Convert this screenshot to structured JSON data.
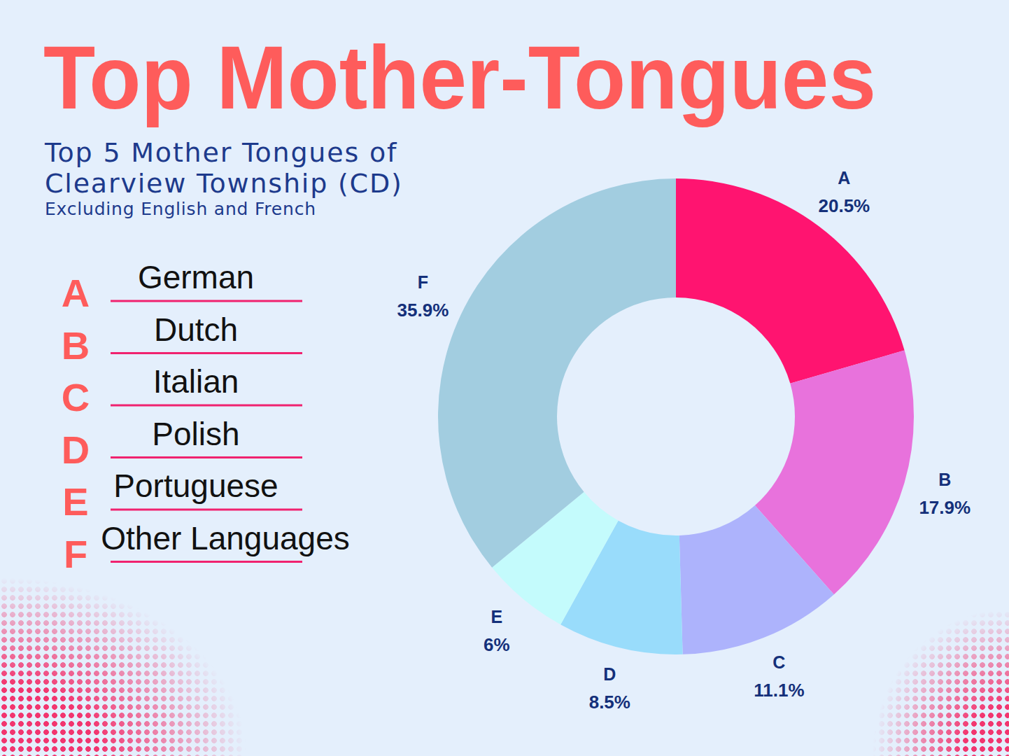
{
  "chart_data": {
    "type": "donut",
    "title": "Top Mother-Tongues",
    "subtitle": "Top 5 Mother Tongues of Clearview Township (CD)",
    "note": "Excluding English and French",
    "categories": [
      "A",
      "B",
      "C",
      "D",
      "E",
      "F"
    ],
    "category_names": [
      "German",
      "Dutch",
      "Italian",
      "Polish",
      "Portuguese",
      "Other Languages"
    ],
    "values": [
      20.5,
      17.9,
      11.1,
      8.5,
      6,
      35.9
    ],
    "value_labels": [
      "20.5%",
      "17.9%",
      "11.1%",
      "8.5%",
      "6%",
      "35.9%"
    ],
    "colors": [
      "#ff1470",
      "#e872dc",
      "#adb3fc",
      "#99dcfb",
      "#c4fbfc",
      "#a2cde0"
    ],
    "data_labels": true
  }
}
